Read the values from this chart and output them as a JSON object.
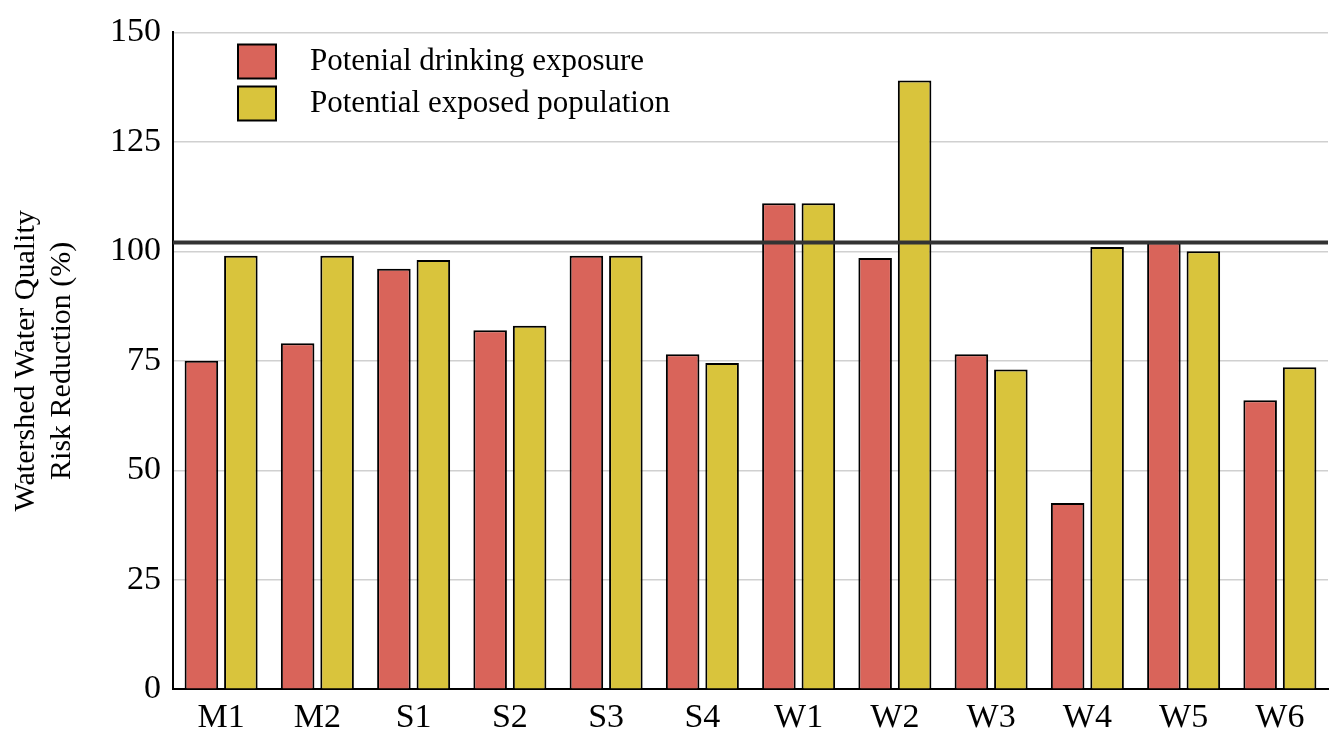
{
  "chart_data": {
    "type": "bar",
    "ylabel": "Watershed Water Quality\nRisk Reduction (%)",
    "categories": [
      "M1",
      "M2",
      "S1",
      "S2",
      "S3",
      "S4",
      "W1",
      "W2",
      "W3",
      "W4",
      "W5",
      "W6"
    ],
    "series": [
      {
        "name": "Potenial drinking exposure",
        "color": "#d9645a",
        "values": [
          75,
          79,
          96,
          82,
          99,
          76.5,
          111,
          98.5,
          76.5,
          42.5,
          102,
          66
        ]
      },
      {
        "name": "Potential exposed population",
        "color": "#d9c43c",
        "values": [
          99,
          99,
          98,
          83,
          99,
          74.5,
          111,
          139,
          73,
          101,
          100,
          73.5
        ]
      }
    ],
    "ylim": [
      0,
      150
    ],
    "yticks": [
      0,
      25,
      50,
      75,
      100,
      125,
      150
    ],
    "grid": "y",
    "legend": "top left",
    "ref_lines": [
      {
        "axis": "y",
        "value": 102,
        "color": "#333333",
        "line_style": "solid"
      }
    ]
  }
}
